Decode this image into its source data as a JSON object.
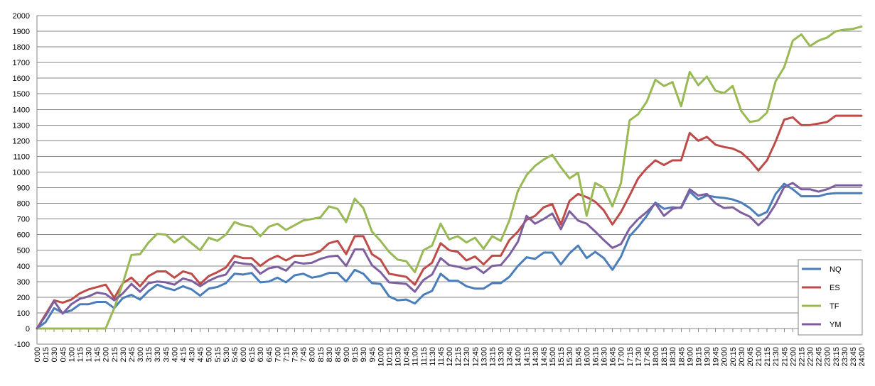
{
  "chart_data": {
    "type": "line",
    "title": "",
    "xlabel": "",
    "ylabel": "",
    "ylim": [
      -100,
      2000
    ],
    "ytick_step": 100,
    "grid": true,
    "legend_position": "right",
    "x": [
      "0:00",
      "0:15",
      "0:30",
      "0:45",
      "1:00",
      "1:15",
      "1:30",
      "1:45",
      "2:00",
      "2:15",
      "2:30",
      "2:45",
      "3:00",
      "3:15",
      "3:30",
      "3:45",
      "4:00",
      "4:15",
      "4:30",
      "4:45",
      "5:00",
      "5:15",
      "5:30",
      "5:45",
      "6:00",
      "6:15",
      "6:30",
      "6:45",
      "7:00",
      "7:15",
      "7:30",
      "7:45",
      "8:00",
      "8:15",
      "8:30",
      "8:45",
      "9:00",
      "9:15",
      "9:30",
      "9:45",
      "10:00",
      "10:15",
      "10:30",
      "10:45",
      "11:00",
      "11:15",
      "11:30",
      "11:45",
      "12:00",
      "12:15",
      "12:30",
      "12:45",
      "13:00",
      "13:15",
      "13:30",
      "13:45",
      "14:00",
      "14:15",
      "14:30",
      "14:45",
      "15:00",
      "15:15",
      "15:30",
      "15:45",
      "16:00",
      "16:15",
      "16:30",
      "16:45",
      "17:00",
      "17:15",
      "17:30",
      "17:45",
      "18:00",
      "18:15",
      "18:30",
      "18:45",
      "19:00",
      "19:15",
      "19:30",
      "19:45",
      "20:00",
      "20:15",
      "20:30",
      "20:45",
      "21:00",
      "21:15",
      "21:30",
      "21:45",
      "22:00",
      "22:15",
      "22:30",
      "22:45",
      "23:00",
      "23:15",
      "23:30",
      "23:45",
      "24:00"
    ],
    "series": [
      {
        "name": "NQ",
        "color": "#4a7ebb",
        "values": [
          0,
          40,
          130,
          100,
          115,
          155,
          155,
          170,
          170,
          130,
          195,
          215,
          185,
          240,
          280,
          260,
          245,
          270,
          250,
          210,
          255,
          265,
          290,
          350,
          345,
          355,
          295,
          300,
          325,
          295,
          340,
          350,
          325,
          335,
          355,
          355,
          300,
          375,
          350,
          290,
          285,
          205,
          180,
          185,
          160,
          215,
          240,
          350,
          305,
          305,
          270,
          255,
          255,
          290,
          290,
          330,
          400,
          455,
          445,
          485,
          485,
          410,
          480,
          530,
          450,
          490,
          450,
          375,
          460,
          590,
          650,
          720,
          805,
          765,
          775,
          770,
          875,
          825,
          850,
          840,
          835,
          825,
          805,
          770,
          720,
          745,
          860,
          925,
          890,
          845,
          845,
          845,
          860,
          865,
          865,
          865,
          865
        ]
      },
      {
        "name": "ES",
        "color": "#be4b48",
        "values": [
          0,
          90,
          180,
          165,
          185,
          225,
          250,
          265,
          280,
          195,
          290,
          325,
          270,
          335,
          365,
          365,
          325,
          365,
          350,
          285,
          335,
          360,
          390,
          465,
          450,
          450,
          400,
          440,
          465,
          435,
          465,
          465,
          475,
          495,
          545,
          560,
          475,
          590,
          590,
          475,
          440,
          350,
          340,
          330,
          280,
          380,
          420,
          545,
          500,
          490,
          435,
          460,
          410,
          465,
          465,
          565,
          620,
          695,
          720,
          775,
          795,
          665,
          815,
          860,
          840,
          810,
          755,
          665,
          745,
          850,
          960,
          1025,
          1075,
          1045,
          1075,
          1075,
          1250,
          1200,
          1225,
          1175,
          1160,
          1150,
          1125,
          1075,
          1010,
          1075,
          1195,
          1335,
          1350,
          1300,
          1300,
          1310,
          1320,
          1360,
          1360,
          1360,
          1360
        ]
      },
      {
        "name": "TF",
        "color": "#98b954",
        "values": [
          0,
          0,
          0,
          0,
          0,
          0,
          0,
          0,
          0,
          130,
          290,
          470,
          475,
          550,
          605,
          600,
          550,
          590,
          545,
          500,
          580,
          560,
          600,
          680,
          660,
          650,
          590,
          650,
          670,
          630,
          660,
          690,
          700,
          710,
          780,
          765,
          680,
          830,
          770,
          620,
          560,
          490,
          440,
          430,
          360,
          500,
          530,
          670,
          570,
          590,
          550,
          580,
          510,
          590,
          560,
          690,
          880,
          980,
          1040,
          1080,
          1110,
          1030,
          960,
          995,
          720,
          930,
          900,
          780,
          930,
          1330,
          1370,
          1450,
          1590,
          1550,
          1575,
          1420,
          1640,
          1555,
          1610,
          1520,
          1505,
          1550,
          1390,
          1320,
          1330,
          1380,
          1580,
          1670,
          1840,
          1880,
          1805,
          1840,
          1860,
          1900,
          1910,
          1915,
          1930
        ]
      },
      {
        "name": "YM",
        "color": "#7d5fa0",
        "values": [
          0,
          80,
          175,
          95,
          155,
          190,
          205,
          230,
          220,
          180,
          225,
          285,
          235,
          290,
          300,
          295,
          280,
          320,
          305,
          270,
          305,
          330,
          345,
          425,
          415,
          410,
          350,
          385,
          395,
          370,
          425,
          415,
          420,
          445,
          460,
          465,
          400,
          505,
          505,
          405,
          360,
          295,
          290,
          285,
          235,
          310,
          345,
          450,
          405,
          395,
          380,
          395,
          355,
          400,
          405,
          470,
          555,
          720,
          670,
          700,
          735,
          635,
          750,
          690,
          670,
          620,
          565,
          515,
          540,
          640,
          700,
          745,
          800,
          720,
          765,
          775,
          890,
          850,
          860,
          800,
          770,
          775,
          740,
          715,
          660,
          710,
          795,
          905,
          930,
          890,
          890,
          875,
          890,
          915,
          915,
          915,
          915
        ]
      }
    ]
  }
}
